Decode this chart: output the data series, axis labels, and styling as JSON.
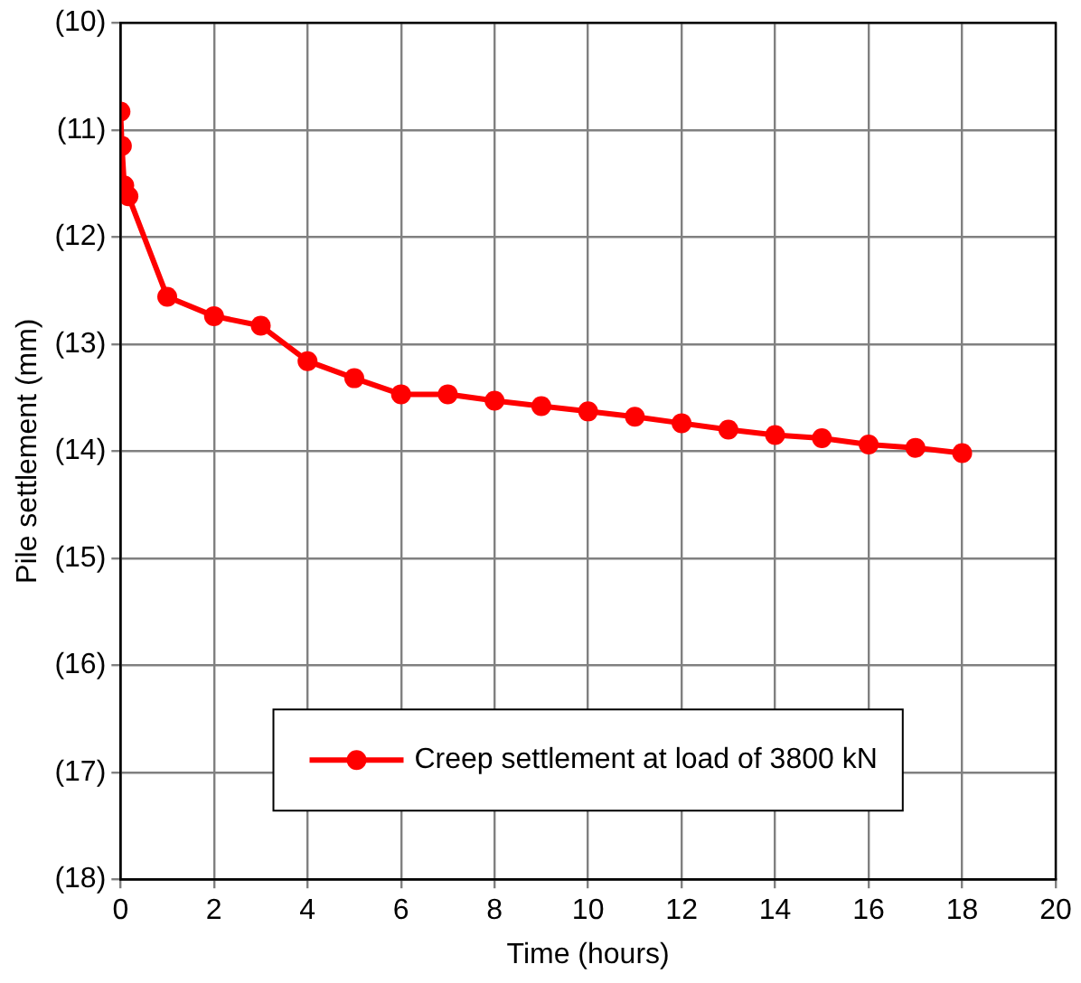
{
  "chart_data": {
    "type": "line",
    "xlabel": "Time (hours)",
    "ylabel": "Pile settlement (mm)",
    "x": [
      0,
      0.03,
      0.08,
      0.17,
      1,
      2,
      3,
      4,
      5,
      6,
      7,
      8,
      9,
      10,
      11,
      12,
      13,
      14,
      15,
      16,
      17,
      18
    ],
    "series": [
      {
        "name": "Creep settlement at load of 3800 kN",
        "color": "#ff0000",
        "values": [
          -10.83,
          -11.15,
          -11.52,
          -11.62,
          -12.56,
          -12.74,
          -12.83,
          -13.16,
          -13.32,
          -13.47,
          -13.47,
          -13.53,
          -13.58,
          -13.63,
          -13.68,
          -13.74,
          -13.8,
          -13.85,
          -13.88,
          -13.94,
          -13.97,
          -14.02
        ]
      }
    ],
    "xlim": [
      0,
      20
    ],
    "xticks": [
      0,
      2,
      4,
      6,
      8,
      10,
      12,
      14,
      16,
      18,
      20
    ],
    "ylim": [
      -18,
      -10
    ],
    "yticks": [
      {
        "value": -18,
        "label": "(18)"
      },
      {
        "value": -17,
        "label": "(17)"
      },
      {
        "value": -16,
        "label": "(16)"
      },
      {
        "value": -15,
        "label": "(15)"
      },
      {
        "value": -14,
        "label": "(14)"
      },
      {
        "value": -13,
        "label": "(13)"
      },
      {
        "value": -12,
        "label": "(12)"
      },
      {
        "value": -11,
        "label": "(11)"
      },
      {
        "value": -10,
        "label": "(10)"
      }
    ],
    "grid": true,
    "legend": "bottom",
    "marker": "circle",
    "line_style": "solid"
  }
}
